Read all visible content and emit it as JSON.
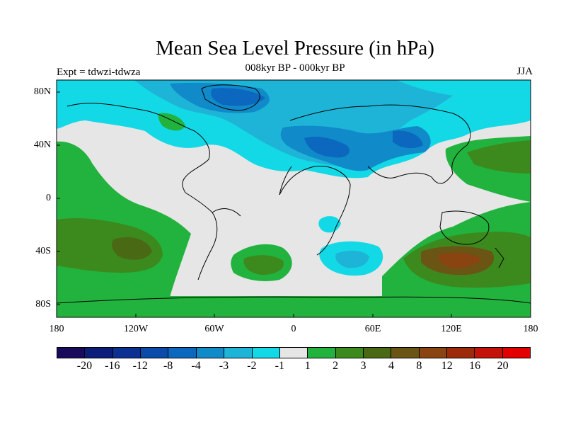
{
  "figure": {
    "title": "Mean Sea Level Pressure (in hPa)",
    "subtitle": "008kyr BP - 000kyr BP",
    "experiment": "Expt = tdwzi-tdwza",
    "season": "JJA"
  },
  "axes": {
    "lat_labels": [
      "80N",
      "40N",
      "0",
      "40S",
      "80S"
    ],
    "lon_labels": [
      "180",
      "120W",
      "60W",
      "0",
      "60E",
      "120E",
      "180"
    ]
  },
  "colorbar": {
    "colors": [
      "#1a0a5c",
      "#0d1e7a",
      "#0c3192",
      "#0a4aa8",
      "#0b68be",
      "#108ac9",
      "#1eb4d8",
      "#13d9e6",
      "#e6e6e6",
      "#22b33e",
      "#3c8a1e",
      "#4a6914",
      "#6a5515",
      "#8a4411",
      "#9e2a0c",
      "#c2120a",
      "#e20000"
    ],
    "labels": [
      "-20",
      "-16",
      "-12",
      "-8",
      "-4",
      "-3",
      "-2",
      "-1",
      "1",
      "2",
      "3",
      "4",
      "8",
      "12",
      "16",
      "20"
    ]
  },
  "colors": {
    "neutral": "#e6e6e6",
    "neg1": "#13d9e6",
    "neg2": "#1eb4d8",
    "neg3": "#108ac9",
    "neg4": "#0b68be",
    "pos2": "#22b33e",
    "pos3": "#3c8a1e",
    "pos4": "#6a5515",
    "pos8": "#8a4411"
  }
}
